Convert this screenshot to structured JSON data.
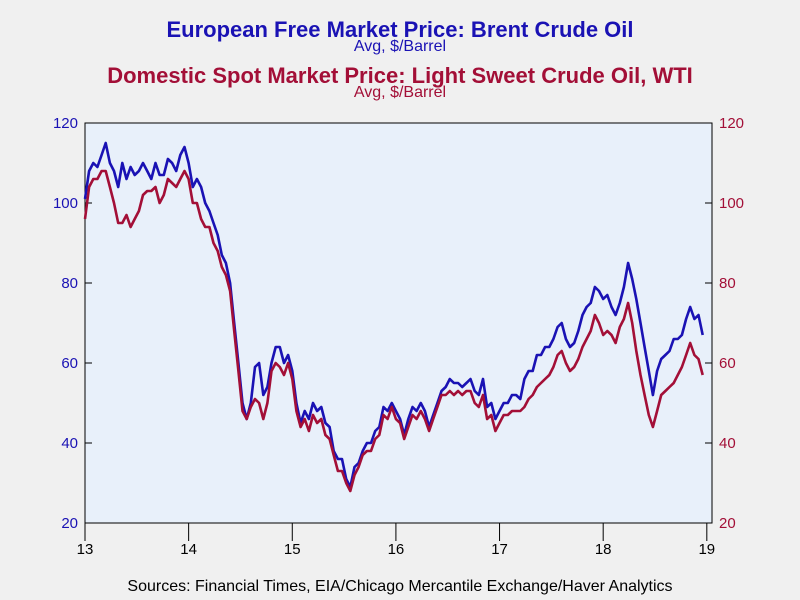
{
  "titles": {
    "series1_title": "European Free Market Price: Brent Crude Oil",
    "series1_sub": "Avg, $/Barrel",
    "series2_title": "Domestic Spot Market Price: Light Sweet Crude Oil, WTI",
    "series2_sub": "Avg, $/Barrel"
  },
  "source": "Sources:  Financial Times, EIA/Chicago Mercantile Exchange/Haver Analytics",
  "colors": {
    "brent": "#1a12b4",
    "wti": "#a30f37",
    "plot_bg": "#e8f0fa",
    "page_bg": "#f0f0f0"
  },
  "chart_data": {
    "type": "line",
    "xlim": [
      2013,
      2019.05
    ],
    "ylim": [
      20,
      120
    ],
    "x_ticks": [
      "13",
      "14",
      "15",
      "16",
      "17",
      "18",
      "19"
    ],
    "x_tick_values": [
      2013,
      2014,
      2015,
      2016,
      2017,
      2018,
      2019
    ],
    "y_ticks_left": [
      "20",
      "40",
      "60",
      "80",
      "100",
      "120"
    ],
    "y_ticks_right": [
      "20",
      "40",
      "60",
      "80",
      "100",
      "120"
    ],
    "y_tick_values": [
      20,
      40,
      60,
      80,
      100,
      120
    ],
    "grid": false,
    "series": [
      {
        "name": "European Free Market Price: Brent Crude Oil",
        "key": "brent",
        "points": [
          [
            2013.0,
            101
          ],
          [
            2013.04,
            108
          ],
          [
            2013.08,
            110
          ],
          [
            2013.12,
            109
          ],
          [
            2013.16,
            112
          ],
          [
            2013.2,
            115
          ],
          [
            2013.24,
            110
          ],
          [
            2013.28,
            108
          ],
          [
            2013.32,
            104
          ],
          [
            2013.36,
            110
          ],
          [
            2013.4,
            106
          ],
          [
            2013.44,
            109
          ],
          [
            2013.48,
            107
          ],
          [
            2013.52,
            108
          ],
          [
            2013.56,
            110
          ],
          [
            2013.6,
            108
          ],
          [
            2013.64,
            106
          ],
          [
            2013.68,
            110
          ],
          [
            2013.72,
            107
          ],
          [
            2013.76,
            107
          ],
          [
            2013.8,
            111
          ],
          [
            2013.84,
            110
          ],
          [
            2013.88,
            108
          ],
          [
            2013.92,
            112
          ],
          [
            2013.96,
            114
          ],
          [
            2014.0,
            110
          ],
          [
            2014.04,
            104
          ],
          [
            2014.08,
            106
          ],
          [
            2014.12,
            104
          ],
          [
            2014.16,
            100
          ],
          [
            2014.2,
            98
          ],
          [
            2014.24,
            95
          ],
          [
            2014.28,
            92
          ],
          [
            2014.32,
            87
          ],
          [
            2014.36,
            85
          ],
          [
            2014.4,
            80
          ],
          [
            2014.44,
            70
          ],
          [
            2014.48,
            60
          ],
          [
            2014.52,
            50
          ],
          [
            2014.56,
            46
          ],
          [
            2014.6,
            50
          ],
          [
            2014.64,
            59
          ],
          [
            2014.68,
            60
          ],
          [
            2014.72,
            52
          ],
          [
            2014.76,
            54
          ],
          [
            2014.8,
            60
          ],
          [
            2014.84,
            64
          ],
          [
            2014.88,
            64
          ],
          [
            2014.92,
            60
          ],
          [
            2014.96,
            62
          ],
          [
            2015.0,
            58
          ],
          [
            2015.04,
            50
          ],
          [
            2015.08,
            45
          ],
          [
            2015.12,
            48
          ],
          [
            2015.16,
            46
          ],
          [
            2015.2,
            50
          ],
          [
            2015.24,
            48
          ],
          [
            2015.28,
            49
          ],
          [
            2015.32,
            45
          ],
          [
            2015.36,
            44
          ],
          [
            2015.4,
            38
          ],
          [
            2015.44,
            36
          ],
          [
            2015.48,
            36
          ],
          [
            2015.52,
            31
          ],
          [
            2015.56,
            29
          ],
          [
            2015.6,
            34
          ],
          [
            2015.64,
            35
          ],
          [
            2015.68,
            38
          ],
          [
            2015.72,
            40
          ],
          [
            2015.76,
            40
          ],
          [
            2015.8,
            43
          ],
          [
            2015.84,
            44
          ],
          [
            2015.88,
            49
          ],
          [
            2015.92,
            48
          ],
          [
            2015.96,
            50
          ],
          [
            2016.0,
            48
          ],
          [
            2016.04,
            46
          ],
          [
            2016.08,
            42
          ],
          [
            2016.12,
            46
          ],
          [
            2016.16,
            49
          ],
          [
            2016.2,
            48
          ],
          [
            2016.24,
            50
          ],
          [
            2016.28,
            48
          ],
          [
            2016.32,
            44
          ],
          [
            2016.36,
            47
          ],
          [
            2016.4,
            50
          ],
          [
            2016.44,
            53
          ],
          [
            2016.48,
            54
          ],
          [
            2016.52,
            56
          ],
          [
            2016.56,
            55
          ],
          [
            2016.6,
            55
          ],
          [
            2016.64,
            54
          ],
          [
            2016.68,
            55
          ],
          [
            2016.72,
            56
          ],
          [
            2016.76,
            53
          ],
          [
            2016.8,
            52
          ],
          [
            2016.84,
            56
          ],
          [
            2016.88,
            49
          ],
          [
            2016.92,
            50
          ],
          [
            2016.96,
            46
          ],
          [
            2017.0,
            48
          ],
          [
            2017.04,
            50
          ],
          [
            2017.08,
            50
          ],
          [
            2017.12,
            52
          ],
          [
            2017.16,
            52
          ],
          [
            2017.2,
            51
          ],
          [
            2017.24,
            56
          ],
          [
            2017.28,
            58
          ],
          [
            2017.32,
            58
          ],
          [
            2017.36,
            62
          ],
          [
            2017.4,
            62
          ],
          [
            2017.44,
            64
          ],
          [
            2017.48,
            64
          ],
          [
            2017.52,
            66
          ],
          [
            2017.56,
            69
          ],
          [
            2017.6,
            70
          ],
          [
            2017.64,
            66
          ],
          [
            2017.68,
            64
          ],
          [
            2017.72,
            65
          ],
          [
            2017.76,
            68
          ],
          [
            2017.8,
            72
          ],
          [
            2017.84,
            74
          ],
          [
            2017.88,
            75
          ],
          [
            2017.92,
            79
          ],
          [
            2017.96,
            78
          ],
          [
            2018.0,
            76
          ],
          [
            2018.04,
            77
          ],
          [
            2018.08,
            74
          ],
          [
            2018.12,
            72
          ],
          [
            2018.16,
            75
          ],
          [
            2018.2,
            79
          ],
          [
            2018.24,
            85
          ],
          [
            2018.28,
            81
          ],
          [
            2018.32,
            76
          ],
          [
            2018.36,
            70
          ],
          [
            2018.4,
            64
          ],
          [
            2018.44,
            58
          ],
          [
            2018.48,
            52
          ],
          [
            2018.52,
            58
          ],
          [
            2018.56,
            61
          ],
          [
            2018.6,
            62
          ],
          [
            2018.64,
            63
          ],
          [
            2018.68,
            66
          ],
          [
            2018.72,
            66
          ],
          [
            2018.76,
            67
          ],
          [
            2018.8,
            71
          ],
          [
            2018.84,
            74
          ],
          [
            2018.88,
            71
          ],
          [
            2018.92,
            72
          ],
          [
            2018.96,
            67
          ]
        ]
      },
      {
        "name": "Domestic Spot Market Price: Light Sweet Crude Oil, WTI",
        "key": "wti",
        "points": [
          [
            2013.0,
            96
          ],
          [
            2013.04,
            104
          ],
          [
            2013.08,
            106
          ],
          [
            2013.12,
            106
          ],
          [
            2013.16,
            108
          ],
          [
            2013.2,
            108
          ],
          [
            2013.24,
            104
          ],
          [
            2013.28,
            100
          ],
          [
            2013.32,
            95
          ],
          [
            2013.36,
            95
          ],
          [
            2013.4,
            97
          ],
          [
            2013.44,
            94
          ],
          [
            2013.48,
            96
          ],
          [
            2013.52,
            98
          ],
          [
            2013.56,
            102
          ],
          [
            2013.6,
            103
          ],
          [
            2013.64,
            103
          ],
          [
            2013.68,
            104
          ],
          [
            2013.72,
            100
          ],
          [
            2013.76,
            102
          ],
          [
            2013.8,
            106
          ],
          [
            2013.84,
            105
          ],
          [
            2013.88,
            104
          ],
          [
            2013.92,
            106
          ],
          [
            2013.96,
            108
          ],
          [
            2014.0,
            106
          ],
          [
            2014.04,
            100
          ],
          [
            2014.08,
            100
          ],
          [
            2014.12,
            96
          ],
          [
            2014.16,
            94
          ],
          [
            2014.2,
            94
          ],
          [
            2014.24,
            90
          ],
          [
            2014.28,
            88
          ],
          [
            2014.32,
            84
          ],
          [
            2014.36,
            82
          ],
          [
            2014.4,
            78
          ],
          [
            2014.44,
            68
          ],
          [
            2014.48,
            58
          ],
          [
            2014.52,
            48
          ],
          [
            2014.56,
            46
          ],
          [
            2014.6,
            49
          ],
          [
            2014.64,
            51
          ],
          [
            2014.68,
            50
          ],
          [
            2014.72,
            46
          ],
          [
            2014.76,
            50
          ],
          [
            2014.8,
            58
          ],
          [
            2014.84,
            60
          ],
          [
            2014.88,
            59
          ],
          [
            2014.92,
            57
          ],
          [
            2014.96,
            60
          ],
          [
            2015.0,
            56
          ],
          [
            2015.04,
            48
          ],
          [
            2015.08,
            44
          ],
          [
            2015.12,
            46
          ],
          [
            2015.16,
            43
          ],
          [
            2015.2,
            47
          ],
          [
            2015.24,
            45
          ],
          [
            2015.28,
            46
          ],
          [
            2015.32,
            42
          ],
          [
            2015.36,
            41
          ],
          [
            2015.4,
            37
          ],
          [
            2015.44,
            33
          ],
          [
            2015.48,
            33
          ],
          [
            2015.52,
            30
          ],
          [
            2015.56,
            28
          ],
          [
            2015.6,
            32
          ],
          [
            2015.64,
            34
          ],
          [
            2015.68,
            37
          ],
          [
            2015.72,
            38
          ],
          [
            2015.76,
            38
          ],
          [
            2015.8,
            41
          ],
          [
            2015.84,
            42
          ],
          [
            2015.88,
            47
          ],
          [
            2015.92,
            46
          ],
          [
            2015.96,
            49
          ],
          [
            2016.0,
            46
          ],
          [
            2016.04,
            45
          ],
          [
            2016.08,
            41
          ],
          [
            2016.12,
            44
          ],
          [
            2016.16,
            47
          ],
          [
            2016.2,
            46
          ],
          [
            2016.24,
            48
          ],
          [
            2016.28,
            46
          ],
          [
            2016.32,
            43
          ],
          [
            2016.36,
            46
          ],
          [
            2016.4,
            49
          ],
          [
            2016.44,
            52
          ],
          [
            2016.48,
            52
          ],
          [
            2016.52,
            53
          ],
          [
            2016.56,
            52
          ],
          [
            2016.6,
            53
          ],
          [
            2016.64,
            52
          ],
          [
            2016.68,
            53
          ],
          [
            2016.72,
            53
          ],
          [
            2016.76,
            50
          ],
          [
            2016.8,
            49
          ],
          [
            2016.84,
            52
          ],
          [
            2016.88,
            46
          ],
          [
            2016.92,
            47
          ],
          [
            2016.96,
            43
          ],
          [
            2017.0,
            45
          ],
          [
            2017.04,
            47
          ],
          [
            2017.08,
            47
          ],
          [
            2017.12,
            48
          ],
          [
            2017.16,
            48
          ],
          [
            2017.2,
            48
          ],
          [
            2017.24,
            49
          ],
          [
            2017.28,
            51
          ],
          [
            2017.32,
            52
          ],
          [
            2017.36,
            54
          ],
          [
            2017.4,
            55
          ],
          [
            2017.44,
            56
          ],
          [
            2017.48,
            57
          ],
          [
            2017.52,
            59
          ],
          [
            2017.56,
            62
          ],
          [
            2017.6,
            63
          ],
          [
            2017.64,
            60
          ],
          [
            2017.68,
            58
          ],
          [
            2017.72,
            59
          ],
          [
            2017.76,
            61
          ],
          [
            2017.8,
            64
          ],
          [
            2017.84,
            66
          ],
          [
            2017.88,
            68
          ],
          [
            2017.92,
            72
          ],
          [
            2017.96,
            70
          ],
          [
            2018.0,
            67
          ],
          [
            2018.04,
            68
          ],
          [
            2018.08,
            67
          ],
          [
            2018.12,
            65
          ],
          [
            2018.16,
            69
          ],
          [
            2018.2,
            71
          ],
          [
            2018.24,
            75
          ],
          [
            2018.28,
            70
          ],
          [
            2018.32,
            63
          ],
          [
            2018.36,
            57
          ],
          [
            2018.4,
            52
          ],
          [
            2018.44,
            47
          ],
          [
            2018.48,
            44
          ],
          [
            2018.52,
            48
          ],
          [
            2018.56,
            52
          ],
          [
            2018.6,
            53
          ],
          [
            2018.64,
            54
          ],
          [
            2018.68,
            55
          ],
          [
            2018.72,
            57
          ],
          [
            2018.76,
            59
          ],
          [
            2018.8,
            62
          ],
          [
            2018.84,
            65
          ],
          [
            2018.88,
            62
          ],
          [
            2018.92,
            61
          ],
          [
            2018.96,
            57
          ]
        ]
      }
    ]
  }
}
